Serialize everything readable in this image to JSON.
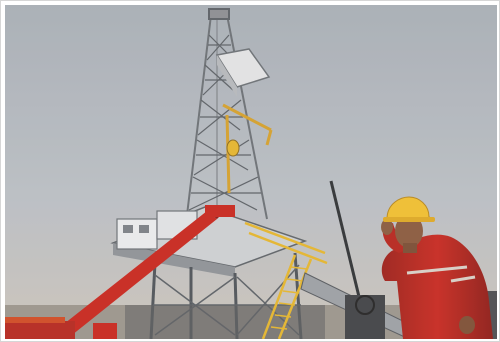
{
  "photo": {
    "colors": {
      "sky_top": "#a9b0b7",
      "sky_mid": "#bcc1c6",
      "sky_haze": "#cdc6bb",
      "steel": "#d8dadc",
      "steel_shadow": "#6b7075",
      "red": "#c9251c",
      "yellow": "#e7b72c",
      "helmet": "#f2c12e",
      "skin": "#8a5a3c",
      "coverall": "#b8241c"
    }
  }
}
